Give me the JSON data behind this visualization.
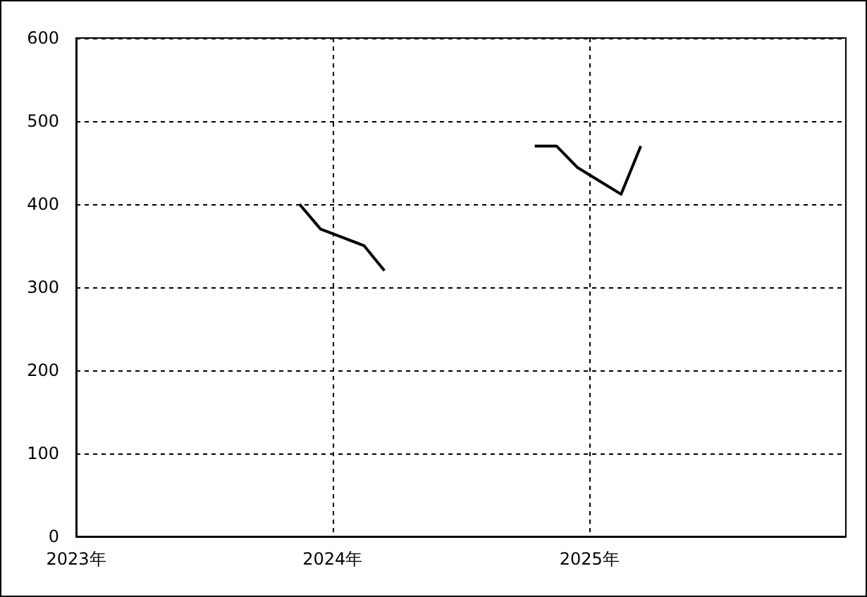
{
  "chart_data": {
    "type": "line",
    "series": [
      {
        "color": "#000000",
        "x": [
          "2023-11-15",
          "2023-12-15",
          "2024-01-15",
          "2024-02-15",
          "2024-03-15"
        ],
        "values": [
          400,
          370,
          360,
          350,
          320
        ]
      },
      {
        "color": "#000000",
        "x": [
          "2024-10-15",
          "2024-11-15",
          "2024-12-15",
          "2025-01-15",
          "2025-02-15",
          "2025-03-15"
        ],
        "values": [
          470,
          470,
          444,
          428,
          412,
          470
        ]
      }
    ],
    "xlim": [
      "2023",
      "2026"
    ],
    "xticks": [
      {
        "value": "2023",
        "label": "2023年"
      },
      {
        "value": "2024",
        "label": "2024年"
      },
      {
        "value": "2025",
        "label": "2025年"
      }
    ],
    "ylim": [
      0,
      600
    ],
    "yticks": [
      0,
      100,
      200,
      300,
      400,
      500,
      600
    ],
    "grid": true,
    "marker": "none",
    "line_style": "solid"
  }
}
